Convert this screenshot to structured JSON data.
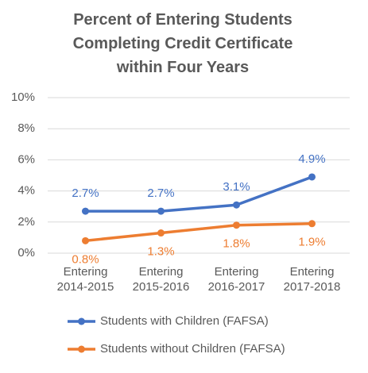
{
  "chart_data": {
    "type": "line",
    "title": "Percent of Entering Students Completing Credit Certificate within Four Years",
    "categories": [
      "Entering 2014-2015",
      "Entering 2015-2016",
      "Entering 2016-2017",
      "Entering 2017-2018"
    ],
    "series": [
      {
        "name": "Students with Children (FAFSA)",
        "color": "#4472c4",
        "values": [
          2.7,
          2.7,
          3.1,
          4.9
        ],
        "value_labels": [
          "2.7%",
          "2.7%",
          "3.1%",
          "4.9%"
        ]
      },
      {
        "name": "Students without Children (FAFSA)",
        "color": "#ed7d31",
        "values": [
          0.8,
          1.3,
          1.8,
          1.9
        ],
        "value_labels": [
          "0.8%",
          "1.3%",
          "1.8%",
          "1.9%"
        ]
      }
    ],
    "ylim": [
      0,
      10
    ],
    "yticks": [
      {
        "value": 0,
        "label": "0%"
      },
      {
        "value": 2,
        "label": "2%"
      },
      {
        "value": 4,
        "label": "4%"
      },
      {
        "value": 6,
        "label": "6%"
      },
      {
        "value": 8,
        "label": "8%"
      },
      {
        "value": 10,
        "label": "10%"
      }
    ],
    "grid": true,
    "legend": "bottom"
  }
}
